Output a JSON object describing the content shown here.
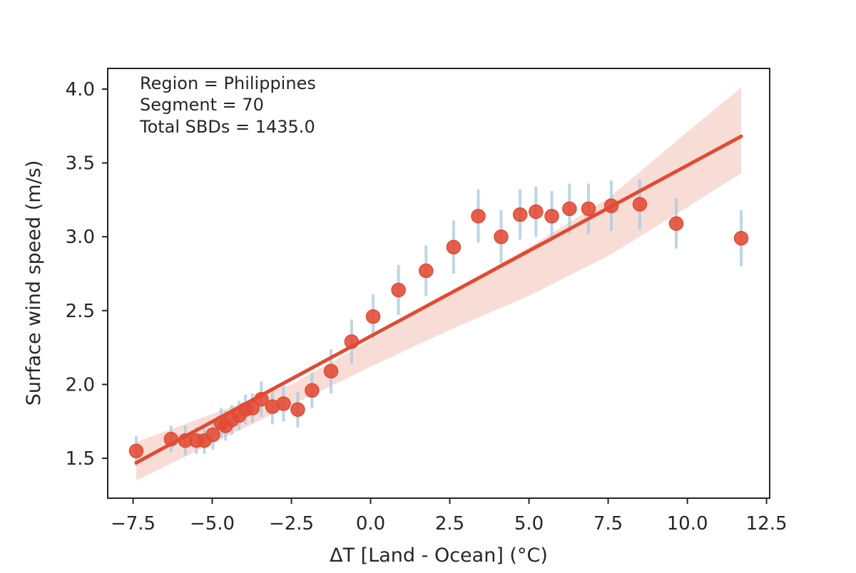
{
  "chart_data": {
    "type": "scatter",
    "xlabel": "ΔT [Land - Ocean] (°C)",
    "ylabel": "Surface wind speed (m/s)",
    "xlim": [
      -8.3,
      12.6
    ],
    "ylim": [
      1.23,
      4.14
    ],
    "xticks": [
      -7.5,
      -5.0,
      -2.5,
      0.0,
      2.5,
      5.0,
      7.5,
      10.0,
      12.5
    ],
    "xtick_labels": [
      "−7.5",
      "−5.0",
      "−2.5",
      "0.0",
      "2.5",
      "5.0",
      "7.5",
      "10.0",
      "12.5"
    ],
    "yticks": [
      1.5,
      2.0,
      2.5,
      3.0,
      3.5,
      4.0
    ],
    "ytick_labels": [
      "1.5",
      "2.0",
      "2.5",
      "3.0",
      "3.5",
      "4.0"
    ],
    "grid": false,
    "annotations": [
      "Region = Philippines",
      "Segment = 70",
      "Total SBDs = 1435.0"
    ],
    "colors": {
      "points": "#e24a33",
      "errorbars": "#a6c8e0",
      "fit_line": "#e24a33",
      "ci_band": "#f7d7d0",
      "axes": "#262626"
    },
    "points": [
      {
        "x": -7.4,
        "y": 1.55,
        "err": 0.1
      },
      {
        "x": -6.3,
        "y": 1.63,
        "err": 0.09
      },
      {
        "x": -5.85,
        "y": 1.62,
        "err": 0.1
      },
      {
        "x": -5.5,
        "y": 1.62,
        "err": 0.09
      },
      {
        "x": -5.25,
        "y": 1.62,
        "err": 0.09
      },
      {
        "x": -4.98,
        "y": 1.66,
        "err": 0.1
      },
      {
        "x": -4.72,
        "y": 1.74,
        "err": 0.1
      },
      {
        "x": -4.58,
        "y": 1.72,
        "err": 0.1
      },
      {
        "x": -4.38,
        "y": 1.76,
        "err": 0.1
      },
      {
        "x": -4.15,
        "y": 1.79,
        "err": 0.1
      },
      {
        "x": -3.95,
        "y": 1.83,
        "err": 0.1
      },
      {
        "x": -3.73,
        "y": 1.84,
        "err": 0.1
      },
      {
        "x": -3.45,
        "y": 1.9,
        "err": 0.12
      },
      {
        "x": -3.1,
        "y": 1.85,
        "err": 0.12
      },
      {
        "x": -2.75,
        "y": 1.87,
        "err": 0.12
      },
      {
        "x": -2.3,
        "y": 1.83,
        "err": 0.12
      },
      {
        "x": -1.85,
        "y": 1.96,
        "err": 0.12
      },
      {
        "x": -1.25,
        "y": 2.09,
        "err": 0.15
      },
      {
        "x": -0.6,
        "y": 2.29,
        "err": 0.15
      },
      {
        "x": 0.08,
        "y": 2.46,
        "err": 0.15
      },
      {
        "x": 0.88,
        "y": 2.64,
        "err": 0.17
      },
      {
        "x": 1.75,
        "y": 2.77,
        "err": 0.17
      },
      {
        "x": 2.62,
        "y": 2.93,
        "err": 0.18
      },
      {
        "x": 3.4,
        "y": 3.14,
        "err": 0.18
      },
      {
        "x": 4.12,
        "y": 3.0,
        "err": 0.18
      },
      {
        "x": 4.72,
        "y": 3.15,
        "err": 0.17
      },
      {
        "x": 5.22,
        "y": 3.17,
        "err": 0.17
      },
      {
        "x": 5.72,
        "y": 3.14,
        "err": 0.17
      },
      {
        "x": 6.28,
        "y": 3.19,
        "err": 0.17
      },
      {
        "x": 6.88,
        "y": 3.19,
        "err": 0.17
      },
      {
        "x": 7.6,
        "y": 3.21,
        "err": 0.17
      },
      {
        "x": 8.5,
        "y": 3.22,
        "err": 0.17
      },
      {
        "x": 9.65,
        "y": 3.09,
        "err": 0.17
      },
      {
        "x": 11.7,
        "y": 2.99,
        "err": 0.19
      }
    ],
    "fit": {
      "x": [
        -7.4,
        11.7
      ],
      "y": [
        1.47,
        3.68
      ]
    },
    "ci_band": {
      "x": [
        -7.4,
        -5.0,
        -2.5,
        0.0,
        2.5,
        5.0,
        7.5,
        10.0,
        11.7
      ],
      "lower": [
        1.35,
        1.6,
        1.86,
        2.12,
        2.37,
        2.6,
        2.87,
        3.2,
        3.43
      ],
      "upper": [
        1.61,
        1.8,
        2.0,
        2.3,
        2.62,
        2.93,
        3.26,
        3.71,
        4.01
      ]
    }
  }
}
